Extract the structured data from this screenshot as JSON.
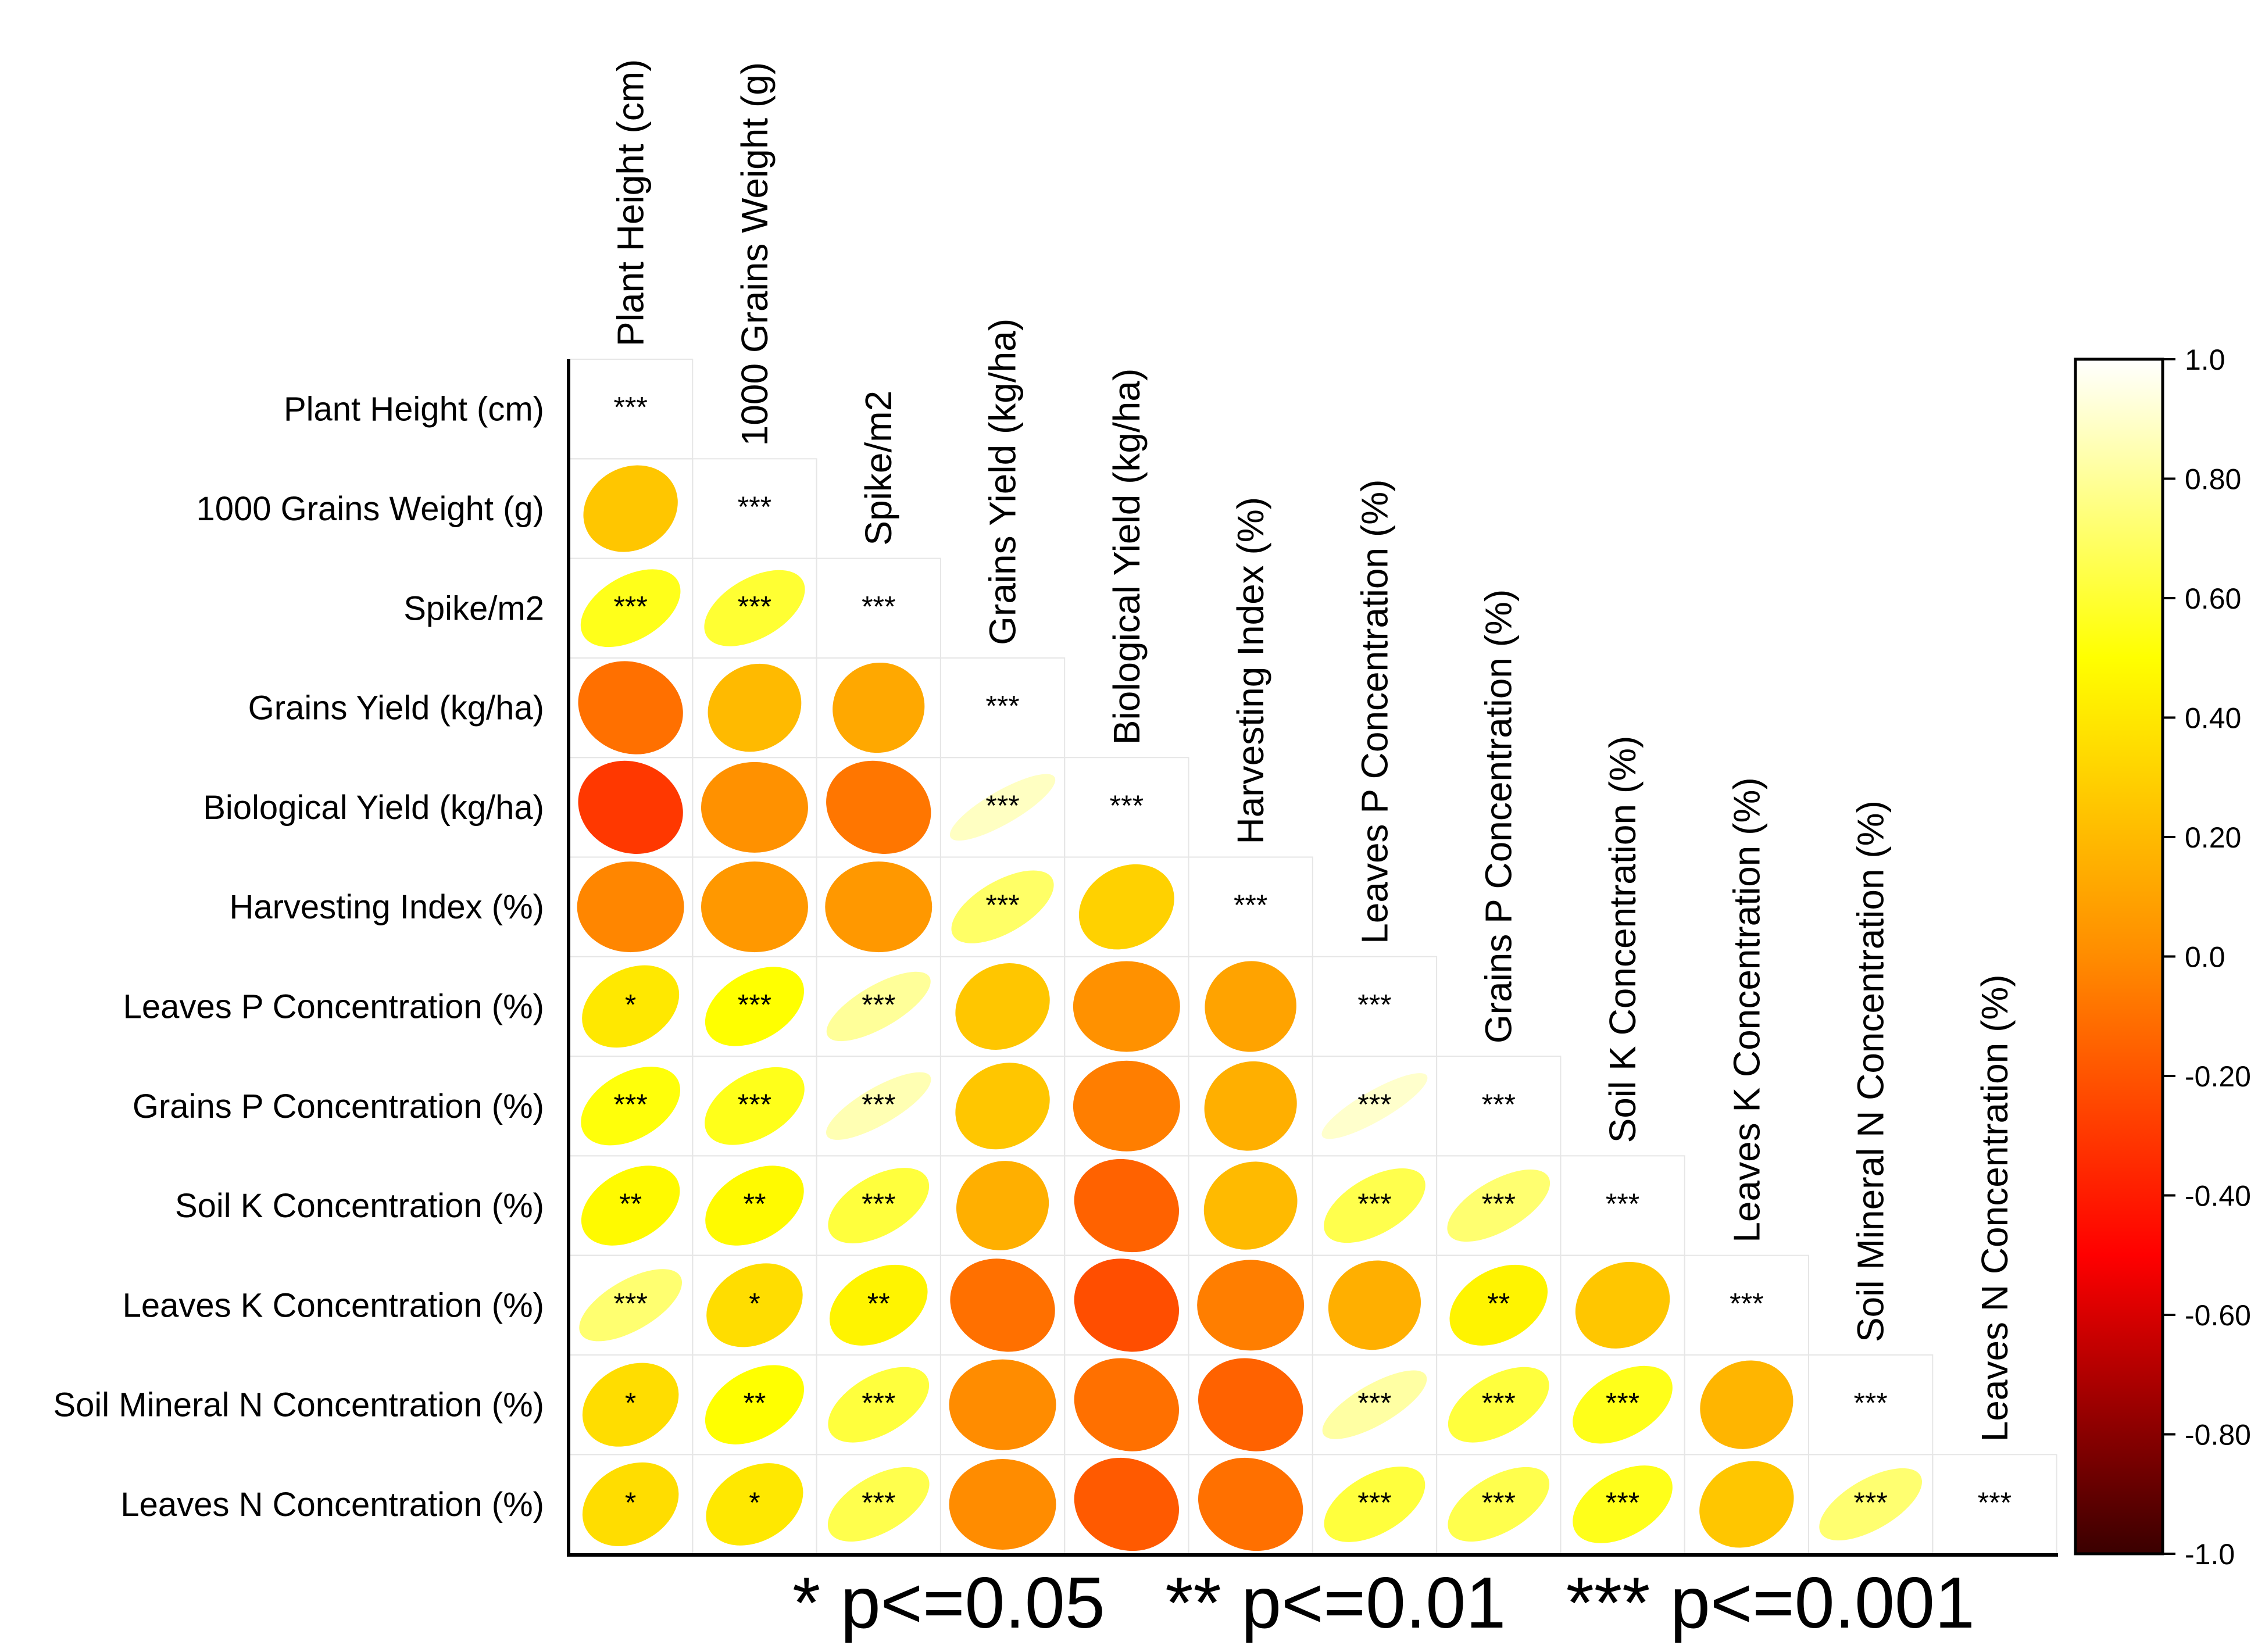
{
  "chart_data": {
    "type": "heatmap",
    "title": "",
    "subtitle": "",
    "variables": [
      "Plant Height (cm)",
      "1000 Grains Weight (g)",
      "Spike/m2",
      "Grains Yield (kg/ha)",
      "Biological Yield (kg/ha)",
      "Harvesting Index (%)",
      "Leaves P Concentration (%)",
      "Grains P Concentration (%)",
      "Soil K Concentration (%)",
      "Leaves K Concentration (%)",
      "Soil Mineral N Concentration (%)",
      "Leaves N Concentration (%)"
    ],
    "matrix": [
      [
        1.0
      ],
      [
        0.25,
        1.0
      ],
      [
        0.55,
        0.6,
        1.0
      ],
      [
        -0.1,
        0.2,
        0.12,
        1.0
      ],
      [
        -0.3,
        0.02,
        -0.08,
        0.88,
        1.0
      ],
      [
        -0.02,
        0.05,
        0.05,
        0.7,
        0.3,
        1.0
      ],
      [
        0.4,
        0.5,
        0.8,
        0.25,
        0.02,
        0.1,
        1.0
      ],
      [
        0.52,
        0.55,
        0.85,
        0.25,
        -0.05,
        0.15,
        0.9,
        1.0
      ],
      [
        0.48,
        0.48,
        0.62,
        0.15,
        -0.15,
        0.2,
        0.65,
        0.72,
        1.0
      ],
      [
        0.72,
        0.35,
        0.45,
        -0.1,
        -0.22,
        -0.05,
        0.15,
        0.45,
        0.25,
        1.0
      ],
      [
        0.35,
        0.5,
        0.62,
        0.0,
        -0.1,
        -0.15,
        0.82,
        0.62,
        0.55,
        0.18,
        1.0
      ],
      [
        0.35,
        0.4,
        0.65,
        0.0,
        -0.18,
        -0.1,
        0.62,
        0.65,
        0.55,
        0.25,
        0.72,
        1.0
      ]
    ],
    "significance": [
      [
        "***"
      ],
      [
        "",
        "***"
      ],
      [
        "***",
        "***",
        "***"
      ],
      [
        "",
        "",
        "",
        "***"
      ],
      [
        "",
        "",
        "",
        "***",
        "***"
      ],
      [
        "",
        "",
        "",
        "***",
        "",
        "***"
      ],
      [
        "*",
        "***",
        "***",
        "",
        "",
        "",
        "***"
      ],
      [
        "***",
        "***",
        "***",
        "",
        "",
        "",
        "***",
        "***"
      ],
      [
        "**",
        "**",
        "***",
        "",
        "",
        "",
        "***",
        "***",
        "***"
      ],
      [
        "***",
        "*",
        "**",
        "",
        "",
        "",
        "",
        "**",
        "",
        "***"
      ],
      [
        "*",
        "**",
        "***",
        "",
        "",
        "",
        "***",
        "***",
        "***",
        "",
        "***"
      ],
      [
        "*",
        "*",
        "***",
        "",
        "",
        "",
        "***",
        "***",
        "***",
        "",
        "***",
        "***"
      ]
    ],
    "colorbar": {
      "min": -1.0,
      "max": 1.0,
      "ticks": [
        "1.0",
        "0.80",
        "0.60",
        "0.40",
        "0.20",
        "0.0",
        "-0.20",
        "-0.40",
        "-0.60",
        "-0.80",
        "-1.0"
      ],
      "stops": [
        "#ffffff",
        "#ffff00",
        "#ff8c00",
        "#ff0000",
        "#3a0000"
      ]
    },
    "legend": {
      "text": "* p<=0.05   ** p<=0.01   *** p<=0.001"
    }
  }
}
